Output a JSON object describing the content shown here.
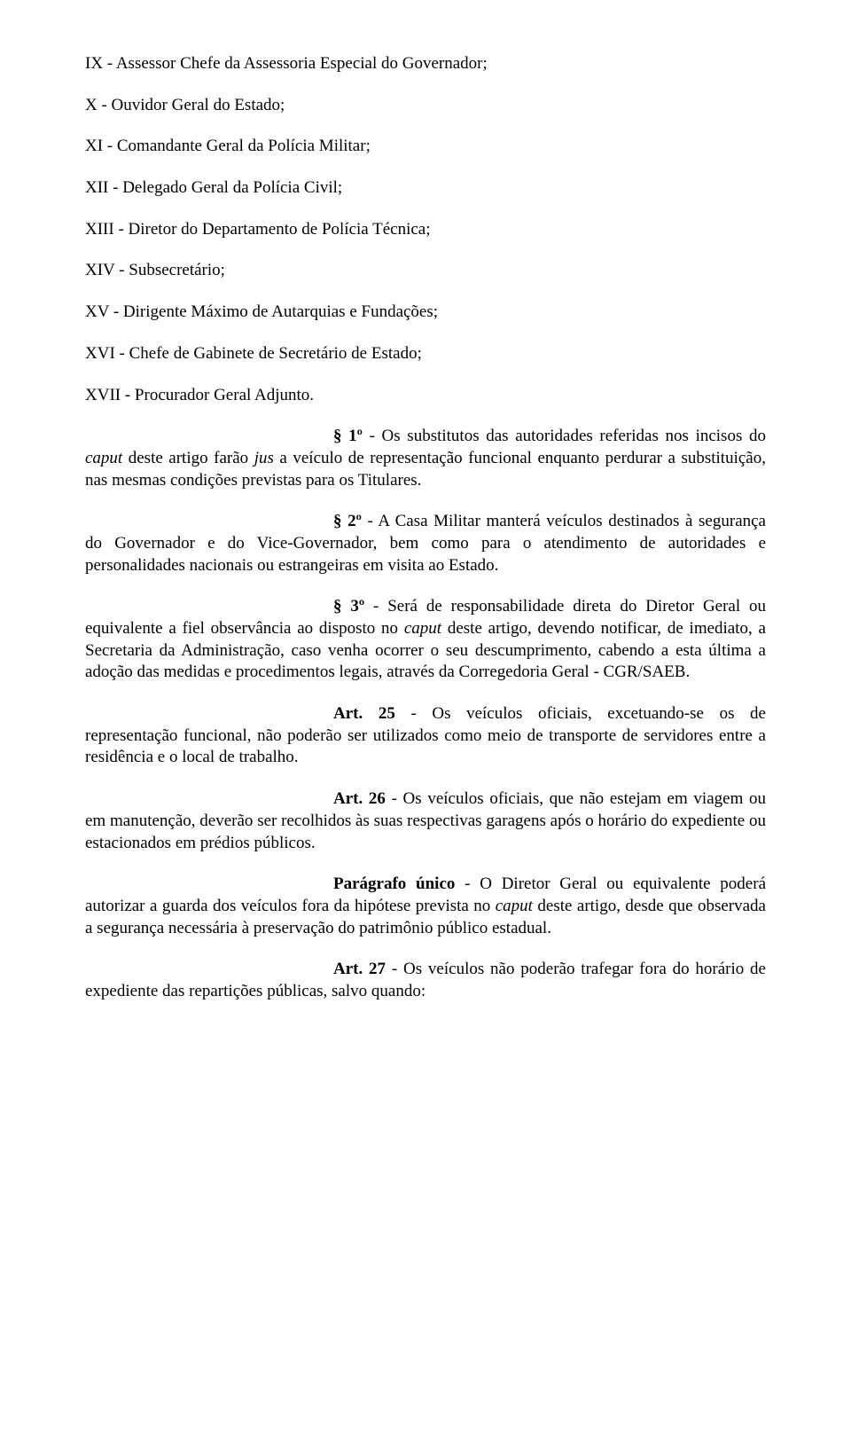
{
  "items": {
    "ix": "IX - Assessor Chefe da Assessoria Especial do Governador;",
    "x": "X - Ouvidor Geral do Estado;",
    "xi": "XI - Comandante Geral da Polícia Militar;",
    "xii": "XII - Delegado Geral da Polícia Civil;",
    "xiii": "XIII - Diretor do Departamento de Polícia Técnica;",
    "xiv": "XIV - Subsecretário;",
    "xv": "XV - Dirigente Máximo de Autarquias e Fundações;",
    "xvi": "XVI - Chefe de Gabinete de Secretário de Estado;",
    "xvii": "XVII - Procurador Geral Adjunto."
  },
  "para1": {
    "lead": "§ 1º",
    "part1": " - Os substitutos das autoridades referidas nos incisos do ",
    "caput": "caput",
    "part2": " deste artigo farão ",
    "jus": "jus",
    "part3": " a veículo de representação funcional enquanto perdurar a substituição, nas mesmas condições previstas para os Titulares."
  },
  "para2": {
    "lead": "§ 2º",
    "body": " - A Casa Militar manterá veículos destinados à segurança do Governador e do Vice-Governador, bem como para o atendimento de autoridades e personalidades nacionais ou estrangeiras em visita ao Estado."
  },
  "para3": {
    "lead": "§ 3º",
    "part1": " - Será de responsabilidade direta do Diretor Geral ou equivalente a fiel observância ao disposto no ",
    "caput": "caput",
    "part2": " deste artigo, devendo notificar, de imediato, a Secretaria da Administração, caso venha ocorrer o seu descumprimento, cabendo a esta última a adoção das medidas e procedimentos legais, através da Corregedoria Geral - CGR/SAEB."
  },
  "art25": {
    "lead": "Art. 25",
    "body": " - Os veículos oficiais, excetuando-se os de representação funcional, não poderão ser utilizados como meio de transporte de servidores entre a residência e o local de trabalho."
  },
  "art26": {
    "lead": "Art. 26",
    "body": " - Os veículos oficiais, que não estejam em viagem ou em manutenção, deverão ser recolhidos às suas respectivas garagens após o horário do expediente ou estacionados em prédios públicos."
  },
  "paraUnico": {
    "lead": "Parágrafo único",
    "part1": " - O Diretor Geral ou equivalente poderá autorizar a guarda dos veículos fora da hipótese prevista no ",
    "caput": "caput",
    "part2": " deste artigo, desde que observada a segurança necessária à preservação do patrimônio público estadual."
  },
  "art27": {
    "lead": "Art. 27",
    "body": " - Os veículos não poderão trafegar fora do horário de expediente das repartições públicas, salvo quando:"
  }
}
